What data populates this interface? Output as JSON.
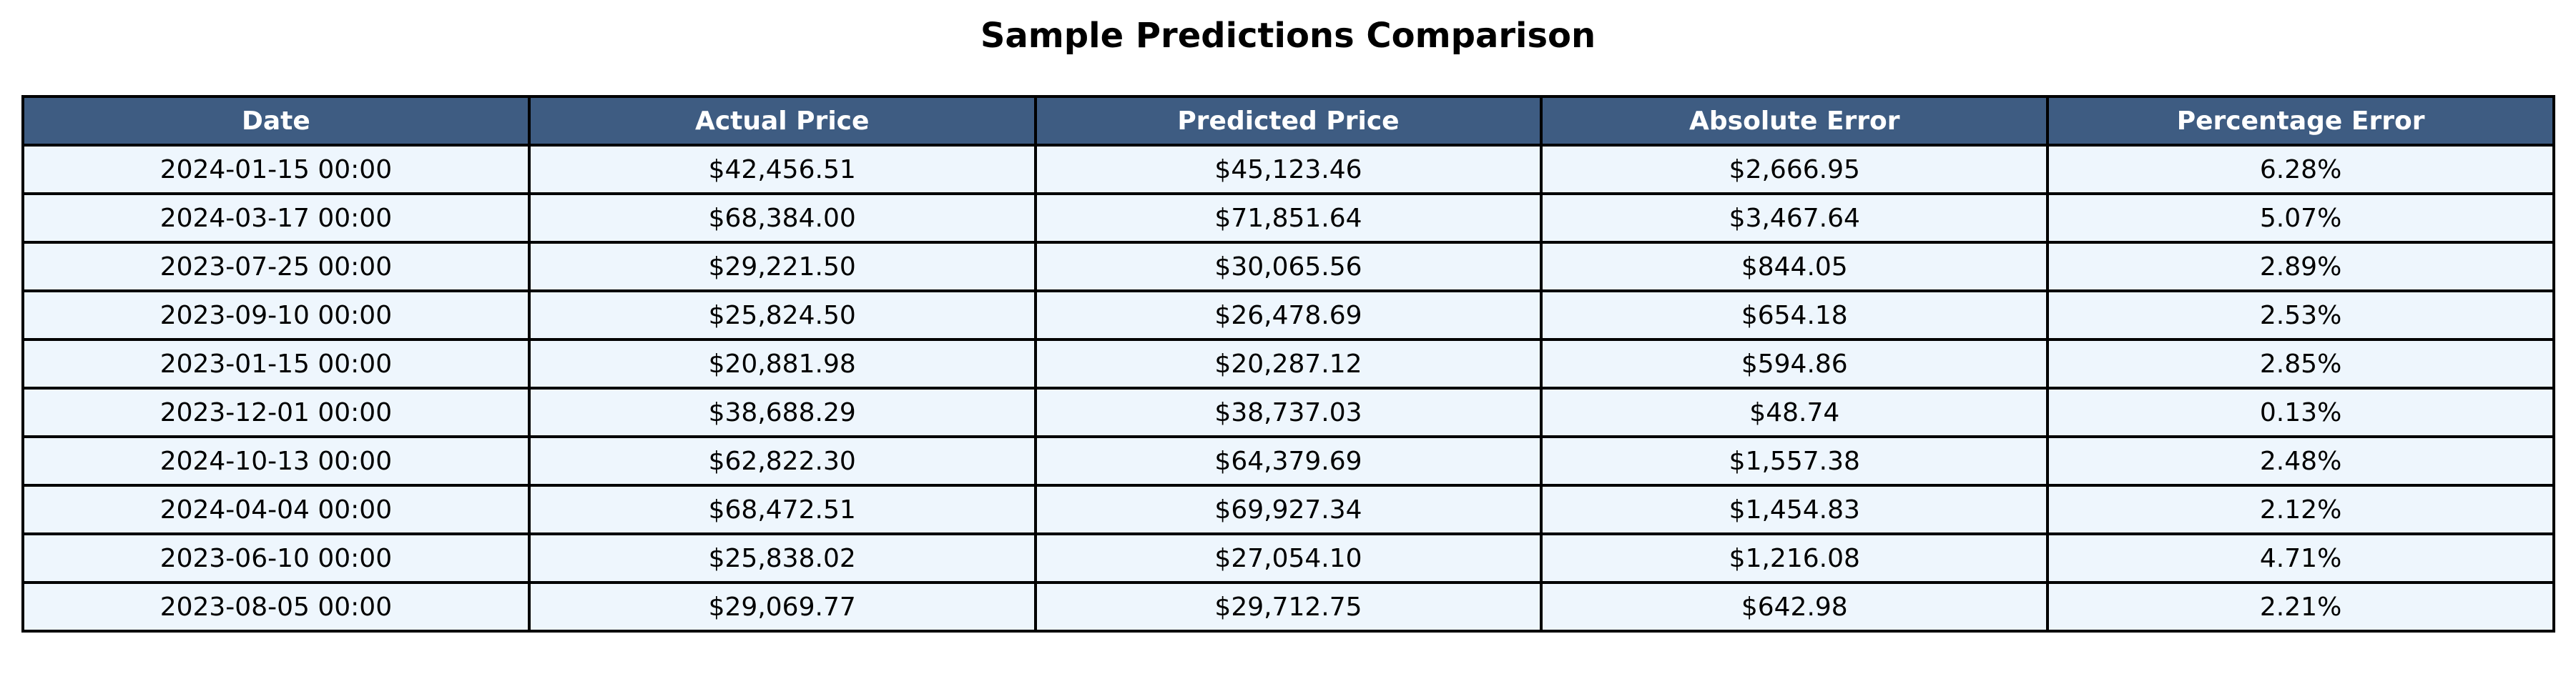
{
  "chart_data": {
    "type": "table",
    "title": "Sample Predictions Comparison",
    "columns": [
      "Date",
      "Actual Price",
      "Predicted Price",
      "Absolute Error",
      "Percentage Error"
    ],
    "rows": [
      [
        "2024-01-15 00:00",
        "$42,456.51",
        "$45,123.46",
        "$2,666.95",
        "6.28%"
      ],
      [
        "2024-03-17 00:00",
        "$68,384.00",
        "$71,851.64",
        "$3,467.64",
        "5.07%"
      ],
      [
        "2023-07-25 00:00",
        "$29,221.50",
        "$30,065.56",
        "$844.05",
        "2.89%"
      ],
      [
        "2023-09-10 00:00",
        "$25,824.50",
        "$26,478.69",
        "$654.18",
        "2.53%"
      ],
      [
        "2023-01-15 00:00",
        "$20,881.98",
        "$20,287.12",
        "$594.86",
        "2.85%"
      ],
      [
        "2023-12-01 00:00",
        "$38,688.29",
        "$38,737.03",
        "$48.74",
        "0.13%"
      ],
      [
        "2024-10-13 00:00",
        "$62,822.30",
        "$64,379.69",
        "$1,557.38",
        "2.48%"
      ],
      [
        "2024-04-04 00:00",
        "$68,472.51",
        "$69,927.34",
        "$1,454.83",
        "2.12%"
      ],
      [
        "2023-06-10 00:00",
        "$25,838.02",
        "$27,054.10",
        "$1,216.08",
        "4.71%"
      ],
      [
        "2023-08-05 00:00",
        "$29,069.77",
        "$29,712.75",
        "$642.98",
        "2.21%"
      ]
    ],
    "header_color": "#3e5c82",
    "header_text_color": "#ffffff",
    "cell_color": "#eef6fd",
    "border_color": "#000000"
  }
}
